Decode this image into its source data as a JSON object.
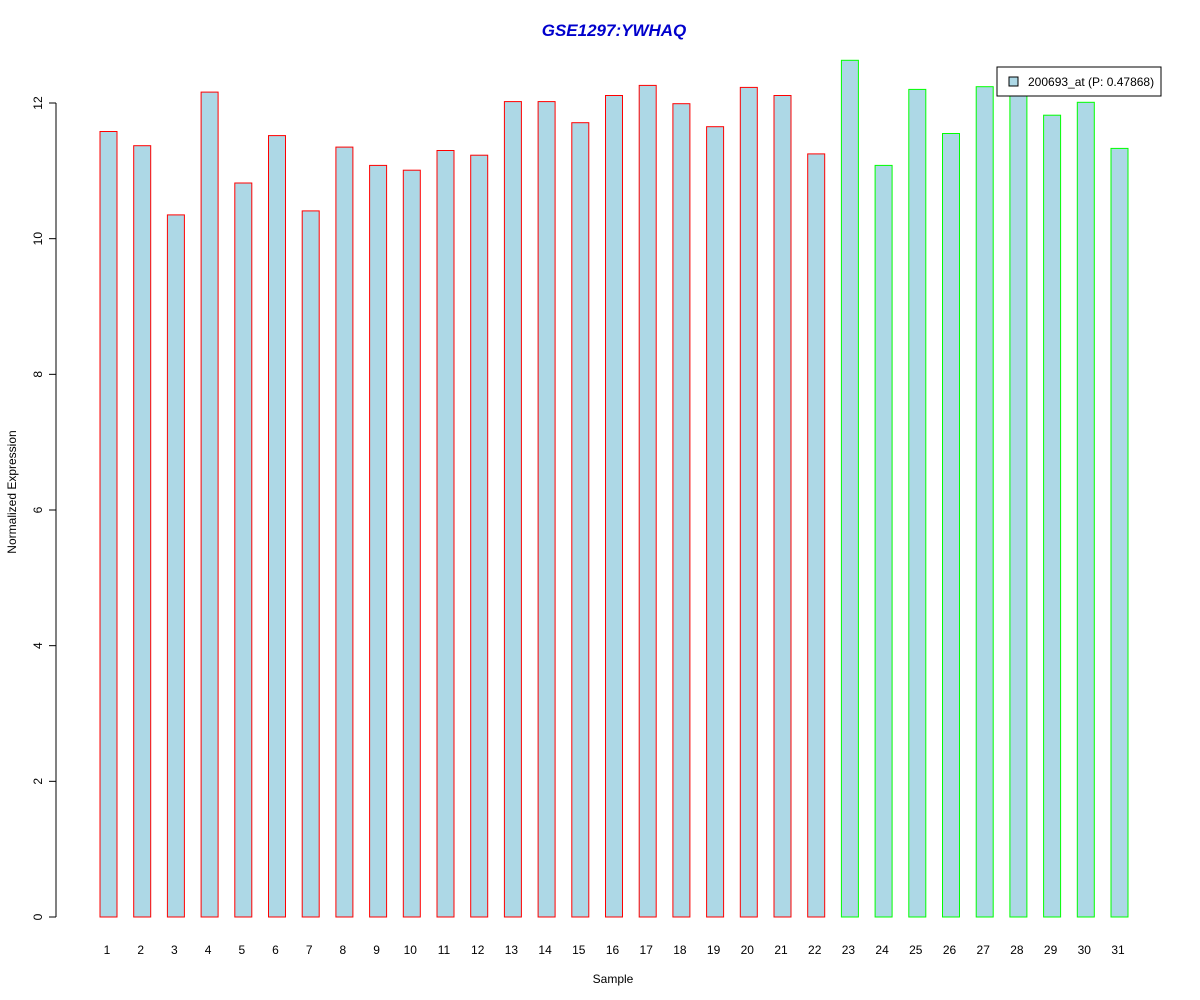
{
  "chart_data": {
    "type": "bar",
    "title": "GSE1297:YWHAQ",
    "xlabel": "Sample",
    "ylabel": "Normalized Expression",
    "ylim": [
      0,
      12.6
    ],
    "yticks": [
      0,
      2,
      4,
      6,
      8,
      10,
      12
    ],
    "categories": [
      "1",
      "2",
      "3",
      "4",
      "5",
      "6",
      "7",
      "8",
      "9",
      "10",
      "11",
      "12",
      "13",
      "14",
      "15",
      "16",
      "17",
      "18",
      "19",
      "20",
      "21",
      "22",
      "23",
      "24",
      "25",
      "26",
      "27",
      "28",
      "29",
      "30",
      "31"
    ],
    "series": [
      {
        "name": "200693_at (P: 0.47868)",
        "values": [
          11.58,
          11.37,
          10.35,
          12.16,
          10.82,
          11.52,
          10.41,
          11.35,
          11.08,
          11.01,
          11.3,
          11.23,
          12.02,
          12.02,
          11.71,
          12.11,
          12.26,
          11.99,
          11.65,
          12.23,
          12.11,
          11.25,
          12.63,
          11.08,
          12.2,
          11.55,
          12.24,
          12.12,
          11.82,
          12.01,
          11.33
        ],
        "group": [
          "red",
          "red",
          "red",
          "red",
          "red",
          "red",
          "red",
          "red",
          "red",
          "red",
          "red",
          "red",
          "red",
          "red",
          "red",
          "red",
          "red",
          "red",
          "red",
          "red",
          "red",
          "red",
          "green",
          "green",
          "green",
          "green",
          "green",
          "green",
          "green",
          "green",
          "green"
        ]
      }
    ],
    "colors": {
      "bar_fill": "#add8e6",
      "group_red_border": "#ff0000",
      "group_green_border": "#00ff00",
      "title": "#0000cc",
      "axis": "#000000"
    },
    "legend": {
      "position": "top-right",
      "label": "200693_at (P: 0.47868)"
    },
    "grid": false
  }
}
